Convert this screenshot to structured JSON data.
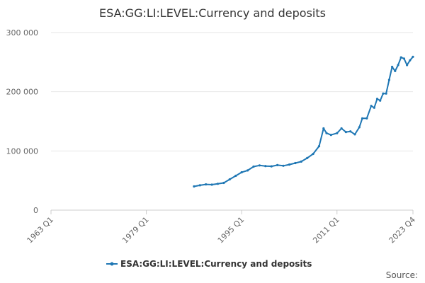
{
  "chart_data": {
    "type": "line",
    "title": "ESA:GG:LI:LEVEL:Currency and deposits",
    "xlabel": "",
    "ylabel": "",
    "x_range": [
      "1963 Q1",
      "2023 Q4"
    ],
    "ylim": [
      0,
      300000
    ],
    "y_ticks": [
      {
        "value": 0,
        "label": "0"
      },
      {
        "value": 100000,
        "label": "100 000"
      },
      {
        "value": 200000,
        "label": "200 000"
      },
      {
        "value": 300000,
        "label": "300 000"
      }
    ],
    "x_ticks": [
      "1963 Q1",
      "1979 Q1",
      "1995 Q1",
      "2011 Q1",
      "2023 Q4"
    ],
    "grid": "horizontal",
    "legend_position": "bottom",
    "series": [
      {
        "name": "ESA:GG:LI:LEVEL:Currency and deposits",
        "color": "#1f77b4",
        "points": [
          [
            "1987 Q1",
            40000
          ],
          [
            "1988 Q1",
            42000
          ],
          [
            "1989 Q1",
            43500
          ],
          [
            "1990 Q1",
            43000
          ],
          [
            "1991 Q1",
            44500
          ],
          [
            "1992 Q1",
            46000
          ],
          [
            "1993 Q1",
            52000
          ],
          [
            "1994 Q1",
            58000
          ],
          [
            "1995 Q1",
            64000
          ],
          [
            "1996 Q1",
            67000
          ],
          [
            "1997 Q1",
            73500
          ],
          [
            "1998 Q1",
            75500
          ],
          [
            "1999 Q1",
            74500
          ],
          [
            "2000 Q1",
            74000
          ],
          [
            "2001 Q1",
            76000
          ],
          [
            "2002 Q1",
            75000
          ],
          [
            "2003 Q1",
            77000
          ],
          [
            "2004 Q1",
            79500
          ],
          [
            "2005 Q1",
            82000
          ],
          [
            "2006 Q1",
            88000
          ],
          [
            "2007 Q1",
            95000
          ],
          [
            "2008 Q1",
            108000
          ],
          [
            "2008 Q4",
            138000
          ],
          [
            "2009 Q2",
            130000
          ],
          [
            "2010 Q1",
            127000
          ],
          [
            "2011 Q1",
            130000
          ],
          [
            "2011 Q4",
            138000
          ],
          [
            "2012 Q3",
            132000
          ],
          [
            "2013 Q2",
            133000
          ],
          [
            "2014 Q1",
            128000
          ],
          [
            "2014 Q4",
            140000
          ],
          [
            "2015 Q2",
            155000
          ],
          [
            "2016 Q1",
            155000
          ],
          [
            "2016 Q4",
            176000
          ],
          [
            "2017 Q2",
            173000
          ],
          [
            "2017 Q4",
            188000
          ],
          [
            "2018 Q2",
            185000
          ],
          [
            "2018 Q4",
            197000
          ],
          [
            "2019 Q2",
            197000
          ],
          [
            "2019 Q4",
            220000
          ],
          [
            "2020 Q2",
            242000
          ],
          [
            "2020 Q4",
            235000
          ],
          [
            "2021 Q2",
            245000
          ],
          [
            "2021 Q4",
            258000
          ],
          [
            "2022 Q2",
            256000
          ],
          [
            "2022 Q4",
            245000
          ],
          [
            "2023 Q2",
            253000
          ],
          [
            "2023 Q4",
            259000
          ]
        ]
      }
    ],
    "source_label": "Source:"
  }
}
